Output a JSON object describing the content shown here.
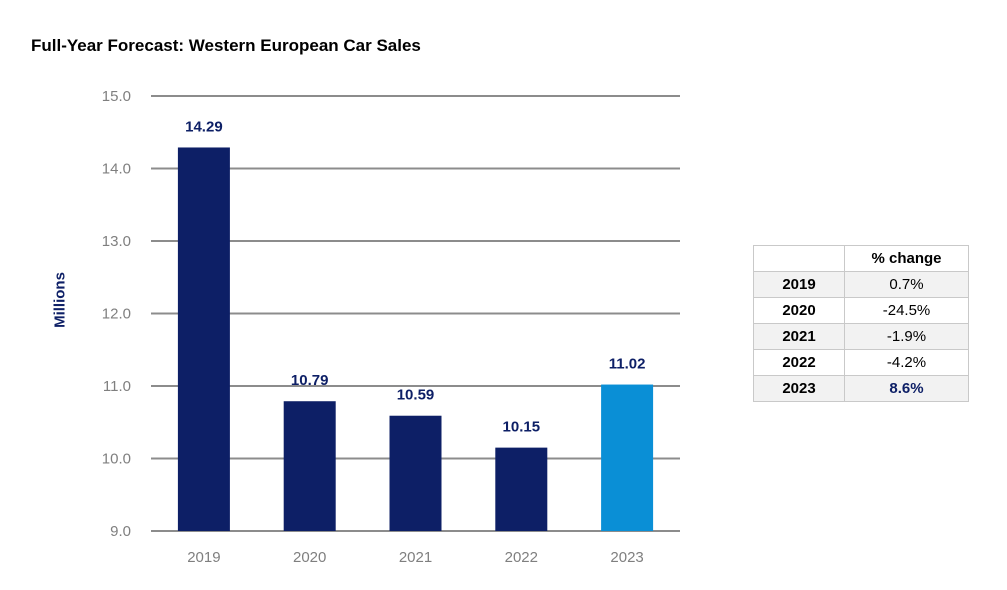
{
  "chart_data": {
    "type": "bar",
    "title": "Full-Year Forecast: Western European Car Sales",
    "ylabel": "Millions",
    "xlabel": "",
    "ylim": [
      9.0,
      15.0
    ],
    "yticks": [
      "9.0",
      "10.0",
      "11.0",
      "12.0",
      "13.0",
      "14.0",
      "15.0"
    ],
    "grid": true,
    "categories": [
      "2019",
      "2020",
      "2021",
      "2022",
      "2023"
    ],
    "values": [
      14.29,
      10.79,
      10.59,
      10.15,
      11.02
    ],
    "value_labels": [
      "14.29",
      "10.79",
      "10.59",
      "10.15",
      "11.02"
    ],
    "colors": {
      "bar": "#0d1f66",
      "highlight_bar": "#0a8fd6",
      "label": "#0d1f66",
      "tick": "#7f7f7f",
      "grid": "#8c8c8c"
    },
    "highlight_index": 4
  },
  "table": {
    "header": "% change",
    "rows": [
      {
        "year": "2019",
        "change": "0.7%"
      },
      {
        "year": "2020",
        "change": "-24.5%"
      },
      {
        "year": "2021",
        "change": "-1.9%"
      },
      {
        "year": "2022",
        "change": "-4.2%"
      },
      {
        "year": "2023",
        "change": "8.6%"
      }
    ]
  }
}
